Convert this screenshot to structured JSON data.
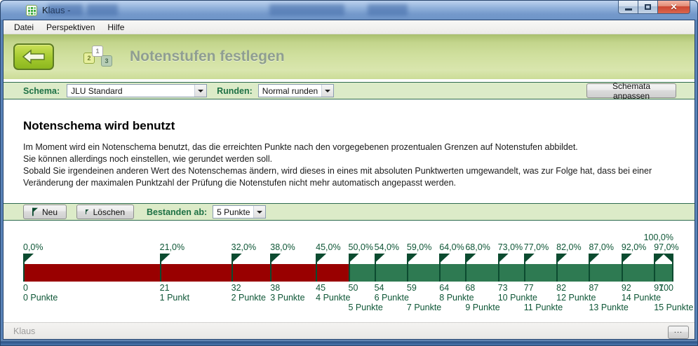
{
  "window": {
    "title": "Klaus -",
    "icons": {
      "minimize": "minimize",
      "maximize": "maximize",
      "close": "r"
    }
  },
  "menu": {
    "items": [
      "Datei",
      "Perspektiven",
      "Hilfe"
    ]
  },
  "header": {
    "title": "Notenstufen festlegen",
    "wizard_steps": [
      "1",
      "2",
      "3"
    ]
  },
  "schema_bar": {
    "schema_label": "Schema:",
    "schema_value": "JLU Standard",
    "round_label": "Runden:",
    "round_value": "Normal runden",
    "adjust_button": "Schemata anpassen"
  },
  "info": {
    "heading": "Notenschema wird benutzt",
    "paragraphs": [
      "Im Moment wird ein Notenschema benutzt, das die erreichten Punkte nach den vorgegebenen prozentualen Grenzen auf Notenstufen abbildet.",
      "Sie können allerdings noch einstellen, wie gerundet werden soll.",
      "Sobald Sie irgendeinen anderen Wert des Notenschemas ändern, wird dieses in eines mit absoluten Punktwerten umgewandelt, was zur Folge hat, dass bei einer Veränderung der maximalen Punktzahl der Prüfung die Notenstufen nicht mehr automatisch angepasst werden."
    ]
  },
  "grades_toolbar": {
    "new_button": "Neu",
    "delete_button": "Löschen",
    "passed_label": "Bestanden ab:",
    "passed_value": "5 Punkte"
  },
  "scale": {
    "colors": {
      "fail": "#990000",
      "pass": "#2e7a52",
      "flag": "#0c4b30",
      "text": "#0e5636"
    },
    "max": 100,
    "pass_from": 50,
    "markers": [
      {
        "value": 0,
        "percent": "0,0%",
        "number": "0",
        "points": "0 Punkte",
        "row": 1
      },
      {
        "value": 21,
        "percent": "21,0%",
        "number": "21",
        "points": "1 Punkt",
        "row": 1
      },
      {
        "value": 32,
        "percent": "32,0%",
        "number": "32",
        "points": "2 Punkte",
        "row": 1
      },
      {
        "value": 38,
        "percent": "38,0%",
        "number": "38",
        "points": "3 Punkte",
        "row": 1
      },
      {
        "value": 45,
        "percent": "45,0%",
        "number": "45",
        "points": "4 Punkte",
        "row": 1
      },
      {
        "value": 50,
        "percent": "50,0%",
        "number": "50",
        "points": "5 Punkte",
        "row": 2
      },
      {
        "value": 54,
        "percent": "54,0%",
        "number": "54",
        "points": "6 Punkte",
        "row": 1
      },
      {
        "value": 59,
        "percent": "59,0%",
        "number": "59",
        "points": "7 Punkte",
        "row": 2
      },
      {
        "value": 64,
        "percent": "64,0%",
        "number": "64",
        "points": "8 Punkte",
        "row": 1
      },
      {
        "value": 68,
        "percent": "68,0%",
        "number": "68",
        "points": "9 Punkte",
        "row": 2
      },
      {
        "value": 73,
        "percent": "73,0%",
        "number": "73",
        "points": "10 Punkte",
        "row": 1
      },
      {
        "value": 77,
        "percent": "77,0%",
        "number": "77",
        "points": "11 Punkte",
        "row": 2
      },
      {
        "value": 82,
        "percent": "82,0%",
        "number": "82",
        "points": "12 Punkte",
        "row": 1
      },
      {
        "value": 87,
        "percent": "87,0%",
        "number": "87",
        "points": "13 Punkte",
        "row": 2
      },
      {
        "value": 92,
        "percent": "92,0%",
        "number": "92",
        "points": "14 Punkte",
        "row": 1
      },
      {
        "value": 97,
        "percent": "97,0%",
        "number": "97",
        "points": "15 Punkte",
        "row": 2
      },
      {
        "value": 100,
        "percent": "100,0%",
        "number": "100",
        "points": "",
        "row": 1,
        "raised": true
      }
    ]
  },
  "status_bar": {
    "text": "Klaus",
    "more_button": "..."
  }
}
